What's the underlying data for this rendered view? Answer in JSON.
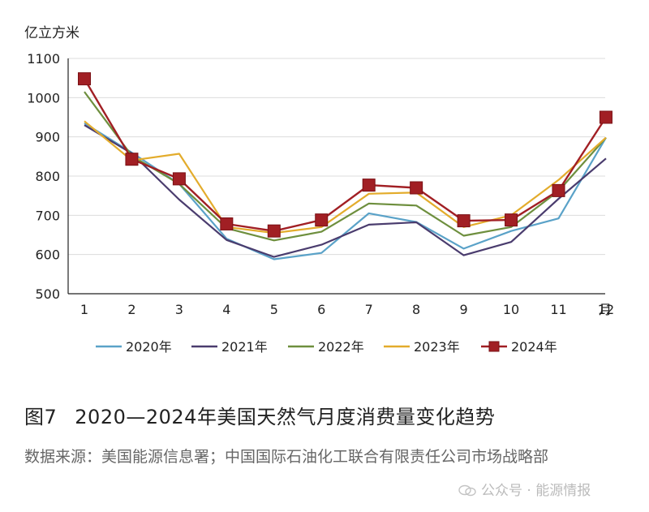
{
  "figure": {
    "caption_number": "图7",
    "caption_title": "2020—2024年美国天然气月度消费量变化趋势",
    "source_note": "数据来源：美国能源信息署；中国国际石油化工联合有限责任公司市场战略部",
    "watermark": "公众号 · 能源情报"
  },
  "colors": {
    "2020年": "#5aa2c8",
    "2021年": "#4a3c6e",
    "2022年": "#6e8f3e",
    "2023年": "#e3ac2c",
    "2024年": "#a11f24"
  },
  "chart_data": {
    "type": "line",
    "title": "2020—2024年美国天然气月度消费量变化趋势",
    "ylabel": "亿立方米",
    "xlabel": "月",
    "x": [
      1,
      2,
      3,
      4,
      5,
      6,
      7,
      8,
      9,
      10,
      11,
      12
    ],
    "x_tick_labels": [
      "1",
      "2",
      "3",
      "4",
      "5",
      "6",
      "7",
      "8",
      "9",
      "10",
      "11",
      "12"
    ],
    "y_ticks": [
      500,
      600,
      700,
      800,
      900,
      1000,
      1100
    ],
    "ylim": [
      500,
      1100
    ],
    "grid": "horizontal",
    "legend_position": "bottom",
    "series": [
      {
        "name": "2020年",
        "marker": "none",
        "values": [
          935,
          860,
          780,
          640,
          588,
          604,
          705,
          683,
          615,
          660,
          692,
          898
        ]
      },
      {
        "name": "2021年",
        "marker": "none",
        "values": [
          930,
          858,
          740,
          637,
          594,
          625,
          676,
          682,
          598,
          632,
          742,
          845
        ]
      },
      {
        "name": "2022年",
        "marker": "none",
        "values": [
          1015,
          852,
          780,
          667,
          636,
          658,
          730,
          725,
          648,
          670,
          762,
          898
        ]
      },
      {
        "name": "2023年",
        "marker": "none",
        "values": [
          940,
          840,
          857,
          670,
          655,
          670,
          755,
          758,
          670,
          700,
          790,
          898
        ]
      },
      {
        "name": "2024年",
        "marker": "square",
        "values": [
          1048,
          843,
          793,
          678,
          660,
          688,
          777,
          770,
          686,
          688,
          763,
          950
        ]
      }
    ]
  }
}
